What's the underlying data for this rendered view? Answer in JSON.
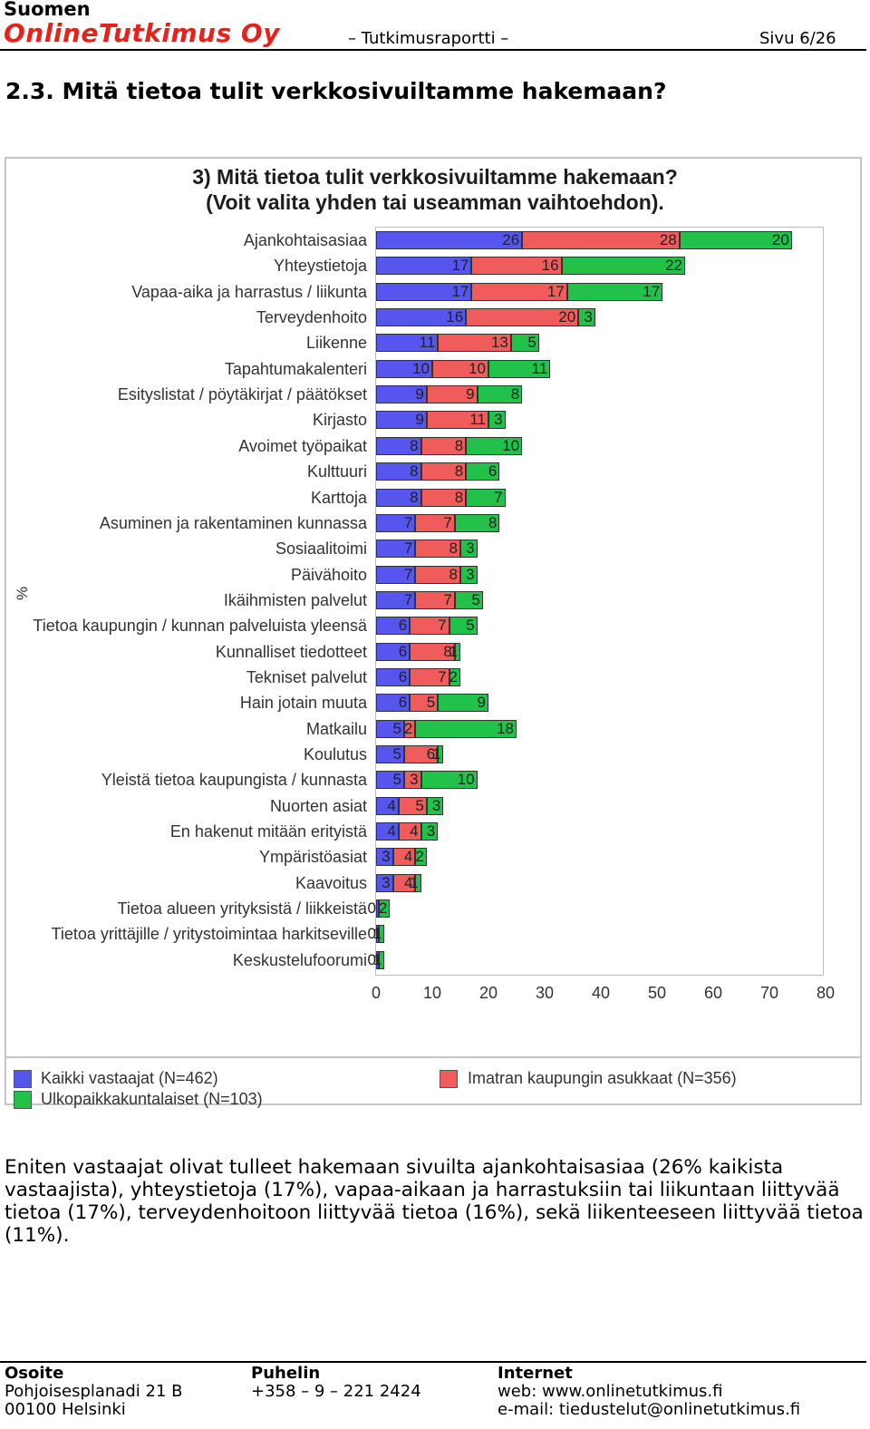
{
  "header": {
    "company_line1": "Suomen",
    "company_line2": "OnlineTutkimus Oy",
    "report": "– Tutkimusraportti –",
    "page": "Sivu 6/26"
  },
  "section_title": "2.3. Mitä tietoa tulit verkkosivuiltamme hakemaan?",
  "chart_data": {
    "type": "bar",
    "orientation": "horizontal",
    "stacked": true,
    "title": "3) Mitä tietoa tulit verkkosivuiltamme hakemaan?",
    "subtitle": "(Voit valita yhden tai useamman vaihtoehdon).",
    "xlabel": "",
    "ylabel": "%",
    "xlim": [
      0,
      80
    ],
    "xticks": [
      "0",
      "10",
      "20",
      "30",
      "40",
      "50",
      "60",
      "70",
      "80"
    ],
    "colors": [
      "#5656ee",
      "#f05c5c",
      "#22c14a"
    ],
    "categories": [
      "Ajankohtaisasiaa",
      "Yhteystietoja",
      "Vapaa-aika ja harrastus / liikunta",
      "Terveydenhoito",
      "Liikenne",
      "Tapahtumakalenteri",
      "Esityslistat / pöytäkirjat / päätökset",
      "Kirjasto",
      "Avoimet työpaikat",
      "Kulttuuri",
      "Karttoja",
      "Asuminen ja rakentaminen kunnassa",
      "Sosiaalitoimi",
      "Päivähoito",
      "Ikäihmisten palvelut",
      "Tietoa kaupungin / kunnan palveluista yleensä",
      "Kunnalliset tiedotteet",
      "Tekniset palvelut",
      "Hain jotain muuta",
      "Matkailu",
      "Koulutus",
      "Yleistä tietoa kaupungista / kunnasta",
      "Nuorten asiat",
      "En hakenut mitään erityistä",
      "Ympäristöasiat",
      "Kaavoitus",
      "Tietoa alueen yrityksistä / liikkeistä",
      "Tietoa yrittäjille / yritystoimintaa harkitseville",
      "Keskustelufoorumi"
    ],
    "series": [
      {
        "name": "Kaikki vastaajat (N=462)",
        "values": [
          26,
          17,
          17,
          16,
          11,
          10,
          9,
          9,
          8,
          8,
          8,
          7,
          7,
          7,
          7,
          6,
          6,
          6,
          6,
          5,
          5,
          5,
          4,
          4,
          3,
          3,
          0,
          0,
          0
        ]
      },
      {
        "name": "Imatran kaupungin asukkaat (N=356)",
        "values": [
          28,
          16,
          17,
          20,
          13,
          10,
          9,
          11,
          8,
          8,
          8,
          7,
          8,
          8,
          7,
          7,
          8,
          7,
          5,
          2,
          6,
          3,
          5,
          4,
          4,
          4,
          0,
          0,
          0
        ]
      },
      {
        "name": "Ulkopaikkakuntalaiset (N=103)",
        "values": [
          20,
          22,
          17,
          3,
          5,
          11,
          8,
          3,
          10,
          6,
          7,
          8,
          3,
          3,
          5,
          5,
          1,
          2,
          9,
          18,
          1,
          10,
          3,
          3,
          2,
          1,
          2,
          1,
          1
        ]
      }
    ],
    "value_labels": [
      [
        "26",
        "28",
        "20"
      ],
      [
        "17",
        "16",
        "22"
      ],
      [
        "17",
        "17",
        "17"
      ],
      [
        "16",
        "20",
        "3"
      ],
      [
        "11",
        "13",
        "5"
      ],
      [
        "10",
        "10",
        "11"
      ],
      [
        "9",
        "9",
        "8"
      ],
      [
        "9",
        "11",
        "3"
      ],
      [
        "8",
        "8",
        "10"
      ],
      [
        "8",
        "8",
        "6"
      ],
      [
        "8",
        "8",
        "7"
      ],
      [
        "7",
        "7",
        "8"
      ],
      [
        "7",
        "8",
        "3"
      ],
      [
        "7",
        "8",
        "3"
      ],
      [
        "7",
        "7",
        "5"
      ],
      [
        "6",
        "7",
        "5"
      ],
      [
        "6",
        "8",
        "1"
      ],
      [
        "6",
        "7",
        "2"
      ],
      [
        "6",
        "5",
        "9"
      ],
      [
        "5",
        "2",
        "18"
      ],
      [
        "5",
        "6",
        "1"
      ],
      [
        "5",
        "3",
        "10"
      ],
      [
        "4",
        "5",
        "3"
      ],
      [
        "4",
        "4",
        "3"
      ],
      [
        "3",
        "4",
        "2"
      ],
      [
        "3",
        "4",
        "1"
      ],
      [
        "0",
        "",
        "2"
      ],
      [
        "0",
        "",
        "1"
      ],
      [
        "0",
        "",
        "1"
      ]
    ],
    "legend": {
      "placement": "bottom",
      "items": [
        "Kaikki vastaajat (N=462)",
        "Imatran kaupungin asukkaat (N=356)",
        "Ulkopaikkakuntalaiset (N=103)"
      ]
    }
  },
  "body_text": "Eniten vastaajat olivat tulleet hakemaan sivuilta ajankohtaisasiaa (26% kaikista vastaajista), yhteystietoja (17%), vapaa-aikaan ja harrastuksiin tai liikuntaan liittyvää tietoa (17%), terveydenhoitoon liittyvää tietoa (16%), sekä liikenteeseen liittyvää tietoa (11%).",
  "footer": {
    "address": {
      "heading": "Osoite",
      "line1": "Pohjoisesplanadi 21 B",
      "line2": "00100 Helsinki"
    },
    "phone": {
      "heading": "Puhelin",
      "line1": "+358 – 9 – 221 2424"
    },
    "internet": {
      "heading": "Internet",
      "line1": "web: www.onlinetutkimus.fi",
      "line2": "e-mail: tiedustelut@onlinetutkimus.fi"
    }
  }
}
